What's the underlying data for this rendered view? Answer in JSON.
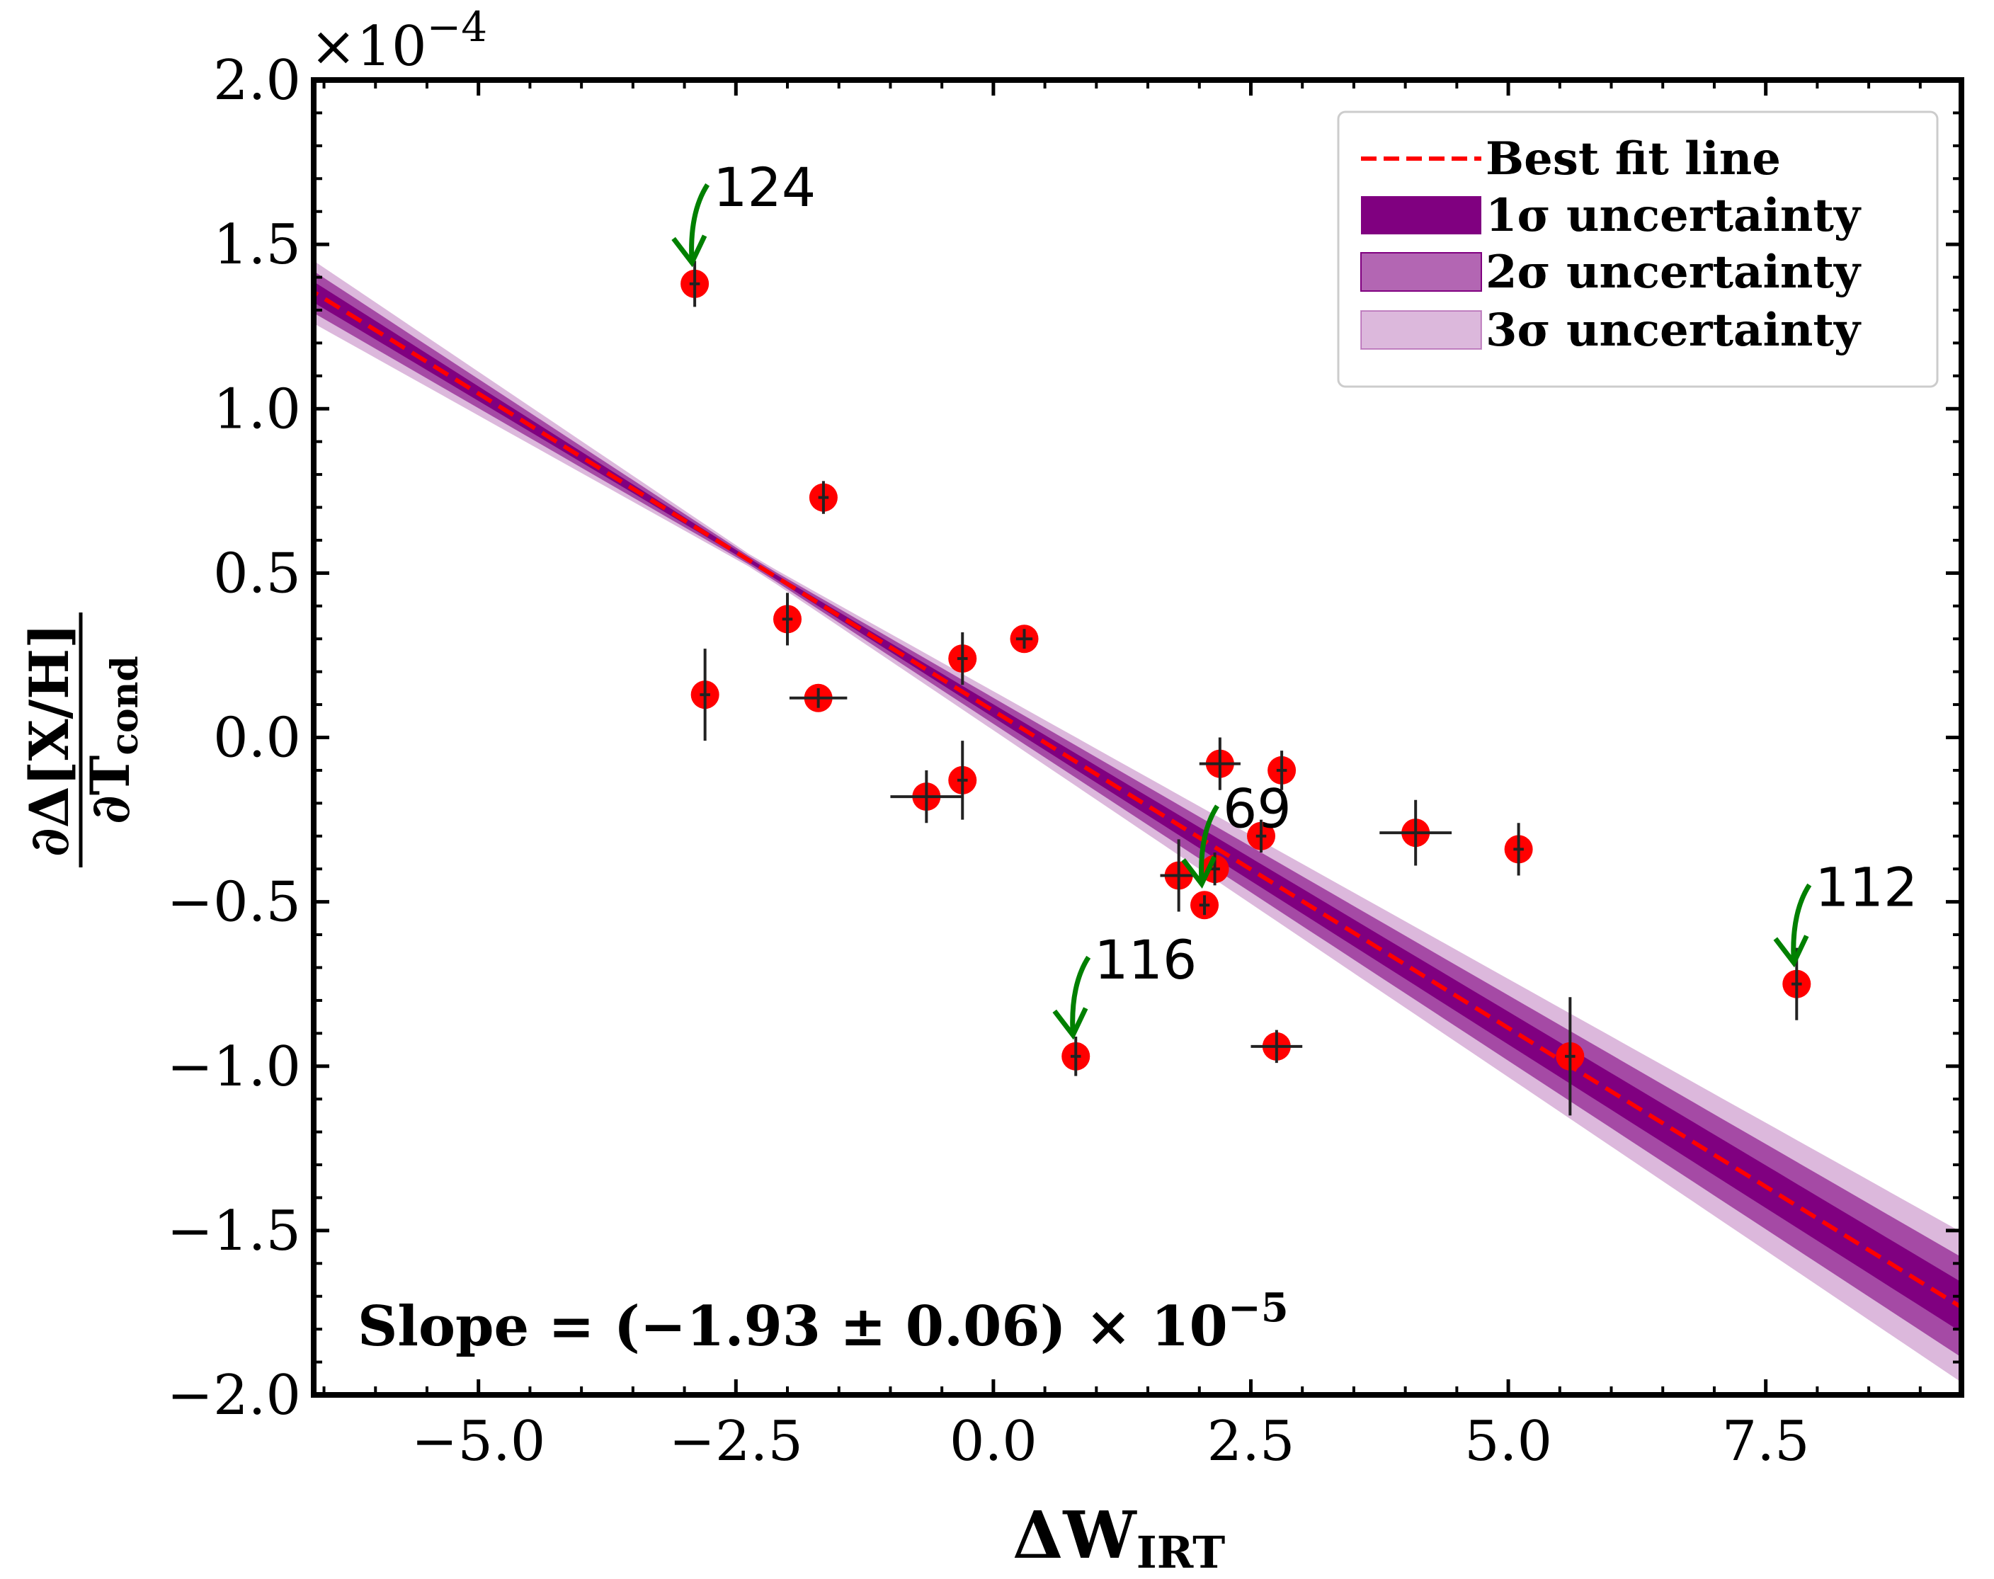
{
  "chart_data": {
    "type": "scatter",
    "xlabel": "ΔW",
    "xlabel_sub": "IRT",
    "ylabel_num": "∂Δ[X/H]",
    "ylabel_den": "∂T",
    "ylabel_den_sub": "cond",
    "offset_text": "×10",
    "offset_exp": "−4",
    "xlim": [
      -6.6,
      9.4
    ],
    "ylim": [
      -2.0,
      2.0
    ],
    "xticks": [
      -5.0,
      -2.5,
      0.0,
      2.5,
      5.0,
      7.5
    ],
    "xtick_labels": [
      "−5.0",
      "−2.5",
      "0.0",
      "2.5",
      "5.0",
      "7.5"
    ],
    "yticks": [
      2.0,
      1.5,
      1.0,
      0.5,
      0.0,
      -0.5,
      -1.0,
      -1.5,
      -2.0
    ],
    "ytick_labels": [
      "2.0",
      "1.5",
      "1.0",
      "0.5",
      "0.0",
      "−0.5",
      "−1.0",
      "−1.5",
      "−2.0"
    ],
    "points": [
      {
        "x": -2.9,
        "y": 1.38,
        "xerr": 0.05,
        "yerr": 0.07
      },
      {
        "x": -1.65,
        "y": 0.73,
        "xerr": 0.05,
        "yerr": 0.05
      },
      {
        "x": -2.0,
        "y": 0.36,
        "xerr": 0.05,
        "yerr": 0.08
      },
      {
        "x": -2.8,
        "y": 0.13,
        "xerr": 0.05,
        "yerr": 0.14
      },
      {
        "x": -1.7,
        "y": 0.12,
        "xerr": 0.28,
        "yerr": 0.03
      },
      {
        "x": -0.3,
        "y": 0.24,
        "xerr": 0.05,
        "yerr": 0.08
      },
      {
        "x": 0.3,
        "y": 0.3,
        "xerr": 0.08,
        "yerr": 0.03
      },
      {
        "x": -0.3,
        "y": -0.13,
        "xerr": 0.05,
        "yerr": 0.12
      },
      {
        "x": -0.65,
        "y": -0.18,
        "xerr": 0.35,
        "yerr": 0.08
      },
      {
        "x": 1.8,
        "y": -0.42,
        "xerr": 0.18,
        "yerr": 0.11
      },
      {
        "x": 2.15,
        "y": -0.4,
        "xerr": 0.05,
        "yerr": 0.05
      },
      {
        "x": 2.05,
        "y": -0.51,
        "xerr": 0.05,
        "yerr": 0.03
      },
      {
        "x": 2.2,
        "y": -0.08,
        "xerr": 0.2,
        "yerr": 0.08
      },
      {
        "x": 2.6,
        "y": -0.3,
        "xerr": 0.05,
        "yerr": 0.05
      },
      {
        "x": 2.8,
        "y": -0.1,
        "xerr": 0.05,
        "yerr": 0.06
      },
      {
        "x": 2.75,
        "y": -0.94,
        "xerr": 0.25,
        "yerr": 0.05
      },
      {
        "x": 0.8,
        "y": -0.97,
        "xerr": 0.05,
        "yerr": 0.06
      },
      {
        "x": 4.1,
        "y": -0.29,
        "xerr": 0.35,
        "yerr": 0.1
      },
      {
        "x": 5.1,
        "y": -0.34,
        "xerr": 0.05,
        "yerr": 0.08
      },
      {
        "x": 5.6,
        "y": -0.97,
        "xerr": 0.05,
        "yerr": 0.18
      },
      {
        "x": 7.8,
        "y": -0.75,
        "xerr": 0.05,
        "yerr": 0.11
      }
    ],
    "annotations": [
      {
        "label": "124",
        "x": -2.9,
        "y": 1.38
      },
      {
        "label": "69",
        "x": 2.05,
        "y": -0.51
      },
      {
        "label": "116",
        "x": 0.8,
        "y": -0.97
      },
      {
        "label": "112",
        "x": 7.8,
        "y": -0.75
      }
    ],
    "fit": {
      "x_pivot": -2.3,
      "y_pivot": 0.525,
      "slope": -0.193,
      "slope_sigma": 0.006
    },
    "legend": {
      "placement": "top-right",
      "entries": [
        {
          "label": "Best fit line",
          "kind": "dashed-line",
          "color": "#ff0000"
        },
        {
          "label": "1σ uncertainty",
          "kind": "band",
          "color": "#800080",
          "opacity": 1.0
        },
        {
          "label": "2σ uncertainty",
          "kind": "band",
          "color": "#800080",
          "opacity": 0.6
        },
        {
          "label": "3σ uncertainty",
          "kind": "band",
          "color": "#800080",
          "opacity": 0.25
        }
      ]
    },
    "slope_text": "Slope = (−1.93 ± 0.06) × 10",
    "slope_exp": "−5",
    "colors": {
      "point": "#ff0000",
      "errorbar": "#222222",
      "band": "#800080",
      "fit": "#ff0000",
      "arrow": "#008000"
    },
    "grid": false
  }
}
